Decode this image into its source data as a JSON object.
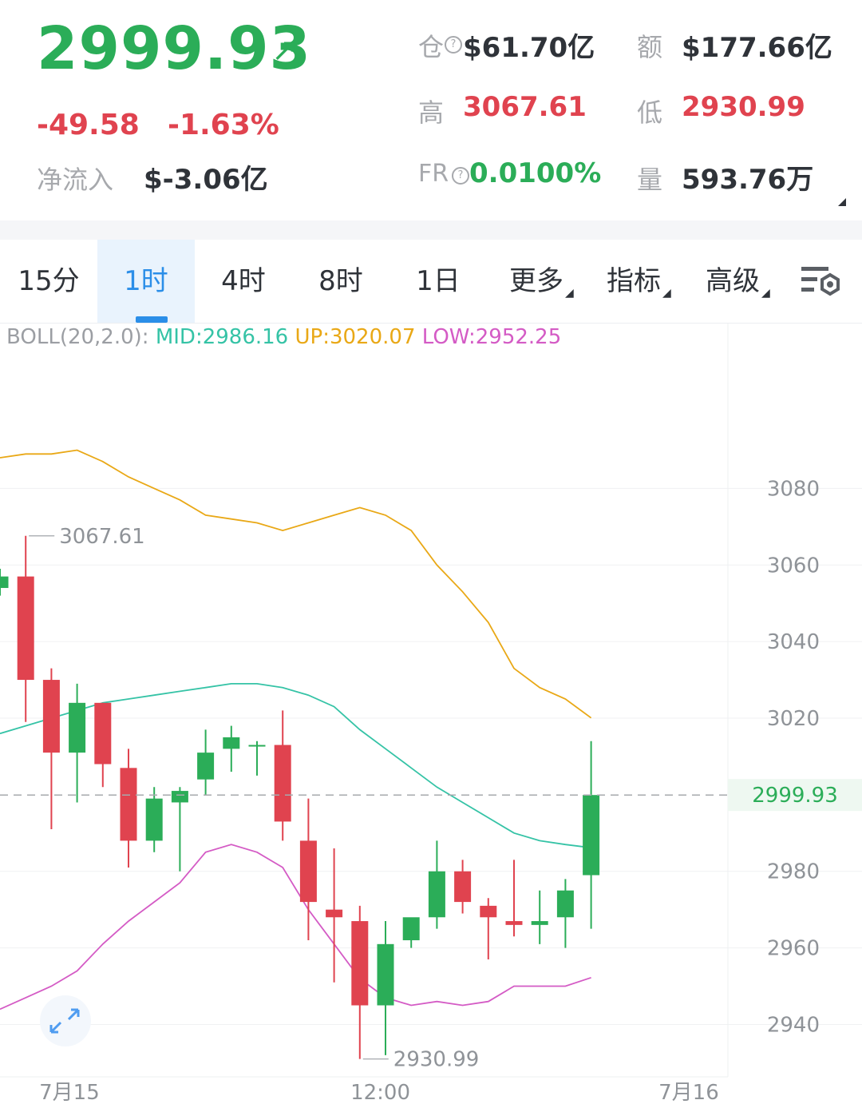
{
  "header": {
    "last_price": "2999.93",
    "change": "-49.58",
    "change_pct": "-1.63%",
    "netflow_label": "净流入",
    "netflow_value": "$-3.06亿",
    "stats": {
      "oi_label": "仓",
      "oi_value": "$61.70亿",
      "turnover_label": "额",
      "turnover_value": "$177.66亿",
      "high_label": "高",
      "high_value": "3067.61",
      "low_label": "低",
      "low_value": "2930.99",
      "fr_label": "FR",
      "fr_value": "0.0100%",
      "volume_label": "量",
      "volume_value": "593.76万"
    }
  },
  "toolbar": {
    "tabs": [
      "15分",
      "1时",
      "4时",
      "8时",
      "1日"
    ],
    "active_tab": "1时",
    "more_label": "更多",
    "indicators_label": "指标",
    "advanced_label": "高级",
    "settings_icon": "chart-settings-icon"
  },
  "boll": {
    "name": "BOLL(20,2.0):",
    "mid": "MID:2986.16",
    "up": "UP:3020.07",
    "low": "LOW:2952.25",
    "colors": {
      "name": "#9b9ea3",
      "mid": "#35c3a6",
      "up": "#e9a816",
      "low": "#d45bc5"
    }
  },
  "chart_data": {
    "type": "candlestick",
    "interval": "1时",
    "y_ticks": [
      3080,
      3060,
      3040,
      3020,
      2980,
      2960,
      2940
    ],
    "y_tick_labels": [
      "3080",
      "3060",
      "3040",
      "3020",
      "2980",
      "2960",
      "2940"
    ],
    "ylim": [
      2928,
      3112
    ],
    "last_price_label": "2999.93",
    "last_price": 2999.93,
    "high_marker": {
      "value": 3067.61,
      "label": "3067.61"
    },
    "low_marker": {
      "value": 2930.99,
      "label": "2930.99"
    },
    "x_labels": [
      "7月15",
      "12:00",
      "7月16"
    ],
    "x_label_slots": [
      2.7,
      14.8,
      26.8
    ],
    "colors": {
      "up": "#2bad58",
      "down": "#e0434f"
    },
    "candles": [
      {
        "o": 3054,
        "h": 3059,
        "c": 3057,
        "l": 3052
      },
      {
        "o": 3057,
        "h": 3067.61,
        "c": 3030,
        "l": 3019
      },
      {
        "o": 3030,
        "h": 3033,
        "c": 3011,
        "l": 2991
      },
      {
        "o": 3011,
        "h": 3029,
        "c": 3024,
        "l": 2998
      },
      {
        "o": 3024,
        "h": 3024,
        "c": 3008,
        "l": 3002
      },
      {
        "o": 3007,
        "h": 3012,
        "c": 2988,
        "l": 2981
      },
      {
        "o": 2988,
        "h": 3002,
        "c": 2999,
        "l": 2985
      },
      {
        "o": 2998,
        "h": 3002,
        "c": 3001,
        "l": 2980
      },
      {
        "o": 3004,
        "h": 3017,
        "c": 3011,
        "l": 3000
      },
      {
        "o": 3012,
        "h": 3018,
        "c": 3015,
        "l": 3006
      },
      {
        "o": 3013,
        "h": 3014,
        "c": 3013,
        "l": 3005
      },
      {
        "o": 3013,
        "h": 3022,
        "c": 2993,
        "l": 2988
      },
      {
        "o": 2988,
        "h": 2999,
        "c": 2972,
        "l": 2962
      },
      {
        "o": 2970,
        "h": 2986,
        "c": 2968,
        "l": 2951
      },
      {
        "o": 2967,
        "h": 2971,
        "c": 2945,
        "l": 2930.99
      },
      {
        "o": 2945,
        "h": 2967,
        "c": 2961,
        "l": 2932
      },
      {
        "o": 2962,
        "h": 2967,
        "c": 2968,
        "l": 2960
      },
      {
        "o": 2968,
        "h": 2988,
        "c": 2980,
        "l": 2965
      },
      {
        "o": 2980,
        "h": 2983,
        "c": 2972,
        "l": 2969
      },
      {
        "o": 2971,
        "h": 2973,
        "c": 2968,
        "l": 2957
      },
      {
        "o": 2967,
        "h": 2983,
        "c": 2966,
        "l": 2963
      },
      {
        "o": 2966,
        "h": 2975,
        "c": 2967,
        "l": 2961
      },
      {
        "o": 2968,
        "h": 2978,
        "c": 2975,
        "l": 2960
      },
      {
        "o": 2979,
        "h": 3014,
        "c": 2999.93,
        "l": 2965
      }
    ],
    "series": [
      {
        "name": "UP",
        "values": [
          3088,
          3089,
          3089,
          3090,
          3087,
          3083,
          3080,
          3077,
          3073,
          3072,
          3071,
          3069,
          3071,
          3073,
          3075,
          3073,
          3069,
          3060,
          3053,
          3045,
          3033,
          3028,
          3025,
          3020.07
        ]
      },
      {
        "name": "MID",
        "values": [
          3016,
          3018,
          3020,
          3022,
          3024,
          3025,
          3026,
          3027,
          3028,
          3029,
          3029,
          3028,
          3026,
          3023,
          3017,
          3012,
          3007,
          3002,
          2998,
          2994,
          2990,
          2988,
          2987,
          2986.16
        ]
      },
      {
        "name": "LOW",
        "values": [
          2944,
          2947,
          2950,
          2954,
          2961,
          2967,
          2972,
          2977,
          2985,
          2987,
          2985,
          2981,
          2970,
          2961,
          2952,
          2947,
          2945,
          2946,
          2945,
          2946,
          2950,
          2950,
          2950,
          2952.25
        ]
      }
    ]
  }
}
